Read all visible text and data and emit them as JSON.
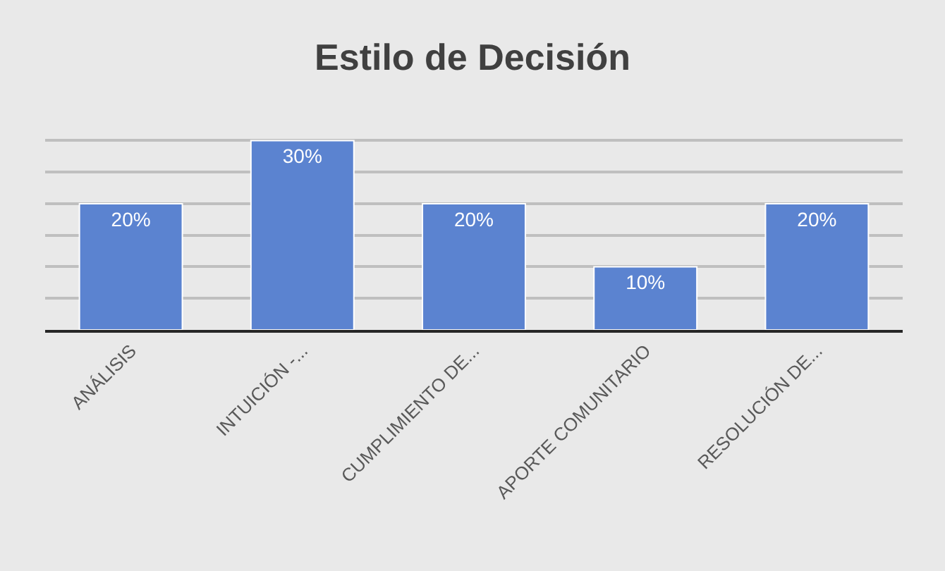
{
  "chart_data": {
    "type": "bar",
    "title": "Estilo de Decisión",
    "categories": [
      "ANÁLISIS",
      "INTUICIÓN -...",
      "CUMPLIMIENTO DE...",
      "APORTE COMUNITARIO",
      "RESOLUCIÓN DE..."
    ],
    "values": [
      20,
      30,
      20,
      10,
      20
    ],
    "value_labels": [
      "20%",
      "30%",
      "20%",
      "10%",
      "20%"
    ],
    "color": "#5b83d0",
    "yticks": [
      {
        "value": 0,
        "label": null
      },
      {
        "value": 5,
        "label": null
      },
      {
        "value": 10,
        "label": null
      },
      {
        "value": 15,
        "label": null
      },
      {
        "value": 20,
        "label": null
      },
      {
        "value": 25,
        "label": null
      },
      {
        "value": 30,
        "label": null
      }
    ],
    "grid": "y",
    "legend": false,
    "tick_labels": "x"
  }
}
